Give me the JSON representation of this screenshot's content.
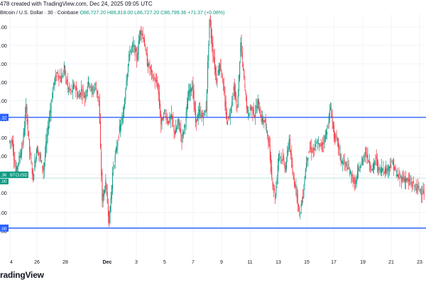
{
  "header": {
    "created_text": "478 created with TradingView.com, Dec 24, 2025 09:05 UTC"
  },
  "legend": {
    "symbol": "Bitcoin / U.S. Dollar · 30 · Coinbase",
    "open": "O86,727.20",
    "high": "H86,818.00",
    "low": "L86,727.20",
    "close": "C86,799.36",
    "change": "+71.37 (+0.08%)"
  },
  "brand": {
    "logo_text": "radingView"
  },
  "colors": {
    "up": "#089981",
    "down": "#f23645",
    "level_line": "#2962ff",
    "price_line": "#089981"
  },
  "chart_data": {
    "type": "candlestick",
    "x_tick_labels": [
      "4",
      "26",
      "28",
      "Dec",
      "3",
      "5",
      "7",
      "9",
      "11",
      "13",
      "15",
      "17",
      "19",
      "21",
      "23"
    ],
    "y_tick_labels": [
      ".00",
      ".00",
      ".00",
      ".00",
      ".00",
      ".00",
      ".00",
      ".00",
      ".00",
      ".00",
      ".00",
      ".00"
    ],
    "horizontal_levels": [
      {
        "label": ".32",
        "level": 0.578
      },
      {
        "label": ".00",
        "level": 0.125
      }
    ],
    "price_tags": [
      {
        "label": ".36",
        "sub": "BTCUSD"
      },
      {
        "label": ".00"
      }
    ],
    "series_points_normalized": [
      0.48,
      0.35,
      0.41,
      0.47,
      0.62,
      0.44,
      0.33,
      0.45,
      0.42,
      0.36,
      0.5,
      0.61,
      0.72,
      0.76,
      0.73,
      0.78,
      0.7,
      0.68,
      0.71,
      0.66,
      0.69,
      0.66,
      0.73,
      0.68,
      0.71,
      0.65,
      0.24,
      0.31,
      0.15,
      0.35,
      0.44,
      0.53,
      0.58,
      0.74,
      0.85,
      0.87,
      0.82,
      0.94,
      0.9,
      0.8,
      0.77,
      0.73,
      0.71,
      0.55,
      0.6,
      0.56,
      0.58,
      0.51,
      0.56,
      0.49,
      0.56,
      0.68,
      0.71,
      0.56,
      0.6,
      0.58,
      0.61,
      0.98,
      0.84,
      0.73,
      0.8,
      0.7,
      0.56,
      0.6,
      0.7,
      0.61,
      0.88,
      0.73,
      0.59,
      0.62,
      0.59,
      0.64,
      0.57,
      0.56,
      0.49,
      0.33,
      0.25,
      0.43,
      0.41,
      0.37,
      0.49,
      0.34,
      0.29,
      0.18,
      0.26,
      0.4,
      0.45,
      0.44,
      0.47,
      0.46,
      0.48,
      0.53,
      0.62,
      0.5,
      0.48,
      0.4,
      0.39,
      0.37,
      0.34,
      0.3,
      0.36,
      0.39,
      0.44,
      0.4,
      0.36,
      0.41,
      0.36,
      0.37,
      0.36,
      0.38,
      0.39,
      0.34,
      0.33,
      0.33,
      0.32,
      0.31,
      0.3,
      0.29,
      0.28,
      0.27
    ]
  }
}
